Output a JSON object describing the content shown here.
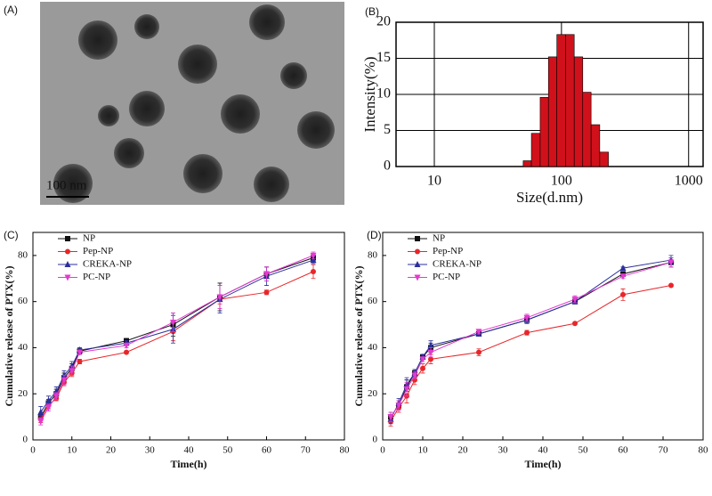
{
  "image": {
    "label": "(A)",
    "scale_bar": "100 nm"
  },
  "chart_data": [
    {
      "type": "histogram",
      "label": "(B)",
      "xlabel": "Size(d.nm)",
      "ylabel": "Intensity(%)",
      "xscale": "log",
      "bins": [
        50,
        58,
        68,
        79,
        92,
        108,
        126,
        147,
        171,
        200,
        234
      ],
      "values": [
        0.8,
        4.6,
        9.6,
        15.2,
        18.3,
        18.3,
        15.2,
        10.3,
        5.8,
        2.0
      ],
      "color": "#d0111b",
      "xlim": [
        5,
        1300
      ],
      "xticks": [
        10,
        100,
        1000
      ],
      "ylim": [
        0,
        20
      ],
      "yticks": [
        0,
        5,
        10,
        15,
        20
      ],
      "grid": true
    },
    {
      "type": "line",
      "label": "(C)",
      "xlabel": "Time(h)",
      "ylabel": "Cumulative release of PTX(%)",
      "x": [
        2,
        4,
        6,
        8,
        10,
        12,
        24,
        36,
        48,
        60,
        72
      ],
      "series": [
        {
          "name": "NP",
          "color": "#111111",
          "marker": "square",
          "values": [
            10,
            16,
            20,
            27,
            31,
            38.5,
            43,
            50,
            62,
            72,
            79
          ],
          "errors": [
            1.5,
            1.5,
            2,
            2,
            2,
            1,
            1,
            5,
            6,
            3,
            1.5
          ]
        },
        {
          "name": "Pep-NP",
          "color": "#e8262a",
          "marker": "circle",
          "values": [
            9,
            15,
            18,
            25,
            29,
            34,
            38,
            47,
            61,
            64,
            73
          ],
          "errors": [
            1.5,
            1.5,
            1,
            1.5,
            1.5,
            1,
            0.5,
            4,
            2,
            1,
            3
          ]
        },
        {
          "name": "CREKA-NP",
          "color": "#2b2f9e",
          "marker": "triangle-up",
          "values": [
            12,
            17,
            21,
            28,
            32,
            39,
            42,
            48,
            61,
            71,
            78
          ],
          "errors": [
            2.5,
            2,
            2,
            2,
            2,
            1,
            1,
            6,
            6,
            4,
            1.5
          ]
        },
        {
          "name": "PC-NP",
          "color": "#e23ad0",
          "marker": "triangle-down",
          "values": [
            8,
            14,
            19,
            26,
            30,
            38,
            41,
            51,
            62,
            72,
            80
          ],
          "errors": [
            1.5,
            1.5,
            1.5,
            2,
            2,
            1,
            1,
            4,
            5,
            3,
            1.5
          ]
        }
      ],
      "xlim": [
        0,
        80
      ],
      "xticks": [
        0,
        10,
        20,
        30,
        40,
        50,
        60,
        70,
        80
      ],
      "ylim": [
        0,
        90
      ],
      "yticks": [
        0,
        20,
        40,
        60,
        80
      ],
      "legend": "upper left"
    },
    {
      "type": "line",
      "label": "(D)",
      "xlabel": "Time(h)",
      "ylabel": "Cumulative release of PTX(%)",
      "x": [
        2,
        4,
        6,
        8,
        10,
        12,
        24,
        36,
        48,
        60,
        72
      ],
      "series": [
        {
          "name": "NP",
          "color": "#111111",
          "marker": "square",
          "values": [
            10,
            15,
            23,
            29,
            36,
            40,
            46,
            52,
            60,
            72,
            77
          ],
          "errors": [
            2,
            2,
            3,
            1.5,
            1,
            2,
            1,
            1.5,
            1,
            1,
            2
          ]
        },
        {
          "name": "Pep-NP",
          "color": "#e8262a",
          "marker": "circle",
          "values": [
            8,
            14,
            19,
            26,
            31,
            35,
            38,
            46.5,
            50.5,
            63,
            67
          ],
          "errors": [
            2,
            2,
            3,
            2,
            2,
            2,
            1.5,
            1,
            0.5,
            2.5,
            0.5
          ]
        },
        {
          "name": "CREKA-NP",
          "color": "#2b2f9e",
          "marker": "triangle-up",
          "values": [
            9,
            16,
            24,
            29,
            36,
            41,
            46,
            52,
            60,
            74.5,
            78
          ],
          "errors": [
            2,
            2,
            3,
            1.5,
            1,
            2,
            1,
            1.5,
            1,
            0.5,
            2
          ]
        },
        {
          "name": "PC-NP",
          "color": "#e23ad0",
          "marker": "triangle-down",
          "values": [
            10,
            15,
            22,
            28,
            35,
            38,
            47,
            53,
            61,
            71,
            77
          ],
          "errors": [
            2,
            2,
            3,
            1.5,
            1,
            2,
            1,
            1.5,
            1.5,
            1,
            2
          ]
        }
      ],
      "xlim": [
        0,
        80
      ],
      "xticks": [
        0,
        10,
        20,
        30,
        40,
        50,
        60,
        70,
        80
      ],
      "ylim": [
        0,
        90
      ],
      "yticks": [
        0,
        20,
        40,
        60,
        80
      ],
      "legend": "upper left"
    }
  ]
}
